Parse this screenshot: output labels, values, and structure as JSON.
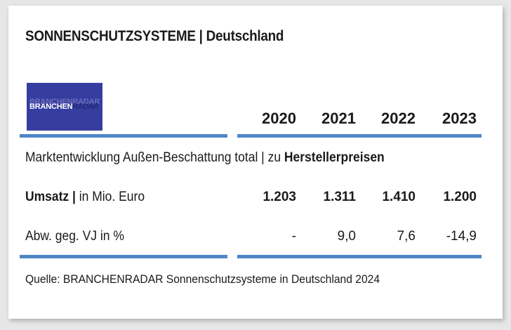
{
  "title": "SONNENSCHUTZSYSTEME | Deutschland",
  "logo": {
    "text_bold": "BRANCHEN",
    "text_regular": "RADAR",
    "bg_color": "#363da0"
  },
  "years": [
    "2020",
    "2021",
    "2022",
    "2023"
  ],
  "subtitle": {
    "prefix": "Marktentwicklung Außen-Beschattung total | zu ",
    "emphasis": "Herstellerpreisen"
  },
  "rows": [
    {
      "label_bold": "Umsatz |",
      "label_regular": " in Mio. Euro",
      "values": [
        "1.203",
        "1.311",
        "1.410",
        "1.200"
      ]
    },
    {
      "label_bold": "",
      "label_regular": "Abw. geg. VJ in %",
      "values": [
        "-",
        "9,0",
        "7,6",
        "-14,9"
      ]
    }
  ],
  "source": "Quelle: BRANCHENRADAR Sonnenschutzsysteme in Deutschland 2024",
  "accent_color": "#4f87c6"
}
